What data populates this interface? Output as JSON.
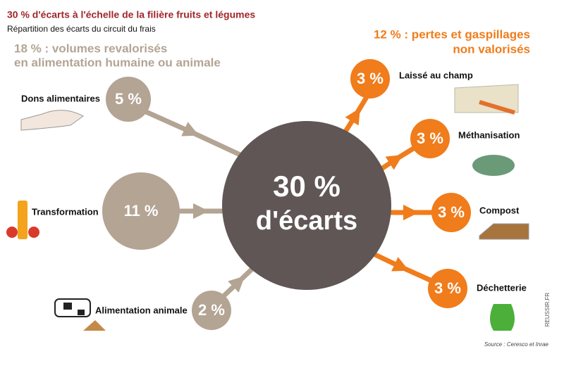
{
  "header": {
    "title": "30 % d'écarts à l'échelle de la filière fruits et légumes",
    "subtitle": "Répartition des écarts du circuit du frais"
  },
  "groups": [
    {
      "lines": [
        "18 % : volumes revalorisés",
        "en alimentation humaine ou animale"
      ]
    },
    {
      "lines": [
        "12 % : pertes et gaspillages",
        "non valorisés"
      ]
    }
  ],
  "center": {
    "lines": [
      "30 %",
      "d'écarts"
    ]
  },
  "nodes": [
    {
      "label": "Dons alimentaires",
      "value": "5 %"
    },
    {
      "label": "Transformation",
      "value": "11 %"
    },
    {
      "label": "Alimentation animale",
      "value": "2 %"
    },
    {
      "label": "Laissé au champ",
      "value": "3 %"
    },
    {
      "label": "Méthanisation",
      "value": "3 %"
    },
    {
      "label": "Compost",
      "value": "3 %"
    },
    {
      "label": "Déchetterie",
      "value": "3 %"
    }
  ],
  "credit": "REUSSIR.FR",
  "source": "Source : Ceresco et Inrae"
}
